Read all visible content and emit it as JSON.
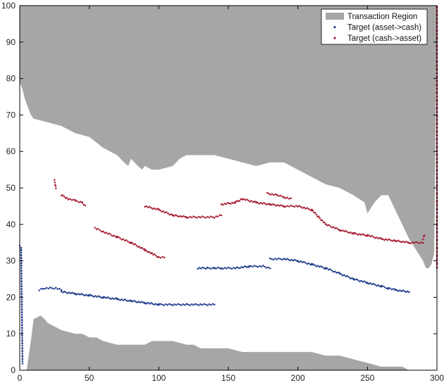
{
  "chart_data": {
    "type": "scatter",
    "title": "",
    "xlabel": "",
    "ylabel": "",
    "xlim": [
      0,
      300
    ],
    "ylim": [
      0,
      100
    ],
    "xticks": [
      0,
      50,
      100,
      150,
      200,
      250,
      300
    ],
    "yticks": [
      0,
      10,
      20,
      30,
      40,
      50,
      60,
      70,
      80,
      90,
      100
    ],
    "grid": false,
    "legend_position": "top-right",
    "legend": [
      {
        "label": "Transaction Region",
        "kind": "patch",
        "color": "#a6a6a6"
      },
      {
        "label": "Target (asset->cash)",
        "kind": "marker",
        "color": "#1f3a8a"
      },
      {
        "label": "Target (cash->asset)",
        "kind": "marker",
        "color": "#a51c30"
      }
    ],
    "region_upper_boundary": {
      "x": [
        0,
        2,
        4,
        6,
        8,
        10,
        20,
        30,
        40,
        50,
        60,
        70,
        75,
        78,
        80,
        85,
        88,
        90,
        95,
        100,
        110,
        115,
        120,
        130,
        140,
        150,
        160,
        170,
        180,
        190,
        200,
        210,
        220,
        230,
        240,
        248,
        250,
        255,
        260,
        265,
        270,
        275,
        280,
        285,
        290,
        292,
        294,
        296,
        298,
        300
      ],
      "y": [
        79,
        77,
        74,
        72,
        70,
        69,
        68,
        67,
        65,
        64,
        61,
        59,
        57,
        56,
        58,
        56,
        55,
        56,
        55,
        55,
        56,
        58,
        59,
        59,
        59,
        58,
        57,
        56,
        57,
        57,
        55,
        53,
        51,
        50,
        48,
        46,
        43,
        46,
        48,
        48,
        44,
        40,
        36,
        33,
        30,
        28,
        28,
        29,
        32,
        100
      ]
    },
    "region_lower_boundary": {
      "x": [
        0,
        5,
        8,
        10,
        15,
        18,
        20,
        25,
        30,
        40,
        45,
        50,
        55,
        60,
        70,
        80,
        90,
        95,
        100,
        110,
        120,
        125,
        130,
        140,
        150,
        160,
        170,
        180,
        190,
        200,
        210,
        220,
        230,
        240,
        250,
        260,
        270,
        275,
        280
      ],
      "y": [
        0,
        0,
        8,
        14,
        15,
        14,
        13,
        12,
        11,
        10,
        10,
        9,
        9,
        8,
        7,
        7,
        7,
        8,
        8,
        8,
        7,
        7,
        6,
        6,
        6,
        5,
        5,
        5,
        5,
        5,
        5,
        4,
        4,
        3,
        2,
        1,
        1,
        1,
        0
      ]
    },
    "series": [
      {
        "name": "Target (asset->cash)",
        "color": "#1f3a8a",
        "segments": [
          {
            "x": [
              0,
              1,
              2
            ],
            "y": [
              34,
              33.5,
              2
            ]
          },
          {
            "x": [
              14,
              18,
              22,
              26,
              30
            ],
            "y": [
              22,
              22.5,
              22.5,
              22.5,
              22
            ]
          },
          {
            "x": [
              30,
              40,
              50,
              60,
              70,
              80,
              90,
              100,
              110,
              120,
              130,
              140
            ],
            "y": [
              21.5,
              21,
              20.5,
              20,
              19.5,
              19,
              18.5,
              18,
              18,
              18,
              18,
              18
            ]
          },
          {
            "x": [
              128,
              135,
              140,
              145
            ],
            "y": [
              28,
              28,
              28,
              28
            ]
          },
          {
            "x": [
              145,
              155,
              165,
              175,
              180
            ],
            "y": [
              28,
              28,
              28.5,
              28.5,
              28
            ]
          },
          {
            "x": [
              180,
              190,
              200,
              210,
              220,
              230,
              240,
              250,
              260,
              265,
              270,
              280
            ],
            "y": [
              30.5,
              30.5,
              30,
              29,
              28,
              26.5,
              25,
              24,
              23,
              22.5,
              22,
              21.5
            ]
          }
        ]
      },
      {
        "name": "Target (cash->asset)",
        "color": "#a51c30",
        "segments": [
          {
            "x": [
              25,
              26
            ],
            "y": [
              52,
              50
            ]
          },
          {
            "x": [
              30,
              35,
              40,
              45,
              47
            ],
            "y": [
              48,
              47,
              46.5,
              46,
              45
            ]
          },
          {
            "x": [
              54,
              60,
              70,
              80,
              90,
              95,
              100,
              104
            ],
            "y": [
              39,
              38,
              36.5,
              35,
              33,
              32,
              31,
              31
            ]
          },
          {
            "x": [
              90,
              100,
              110,
              120,
              130,
              140,
              145
            ],
            "y": [
              45,
              44,
              42.5,
              42,
              42,
              42,
              42.5
            ]
          },
          {
            "x": [
              145,
              155,
              160,
              170,
              180,
              190,
              200,
              210,
              215,
              220,
              230,
              240,
              250,
              260,
              270,
              280,
              290
            ],
            "y": [
              45.5,
              46,
              47,
              46,
              45.5,
              45,
              45,
              44,
              42,
              40,
              38.5,
              37.5,
              37,
              36,
              35.5,
              35,
              35
            ]
          },
          {
            "x": [
              178,
              185,
              190,
              195
            ],
            "y": [
              48.5,
              48,
              47.5,
              47
            ]
          },
          {
            "x": [
              290,
              291
            ],
            "y": [
              36,
              37
            ]
          },
          {
            "x": [
              300,
              300
            ],
            "y": [
              28,
              100
            ]
          }
        ]
      }
    ]
  }
}
